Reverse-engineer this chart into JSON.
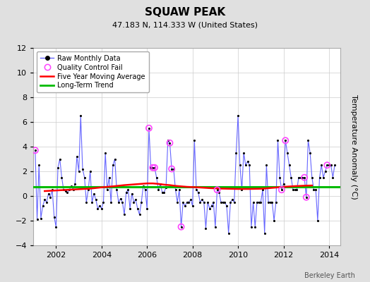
{
  "title": "SQUAW PEAK",
  "subtitle": "47.183 N, 114.333 W (United States)",
  "ylabel": "Temperature Anomaly (°C)",
  "attribution": "Berkeley Earth",
  "ylim": [
    -4,
    12
  ],
  "yticks": [
    -4,
    -2,
    0,
    2,
    4,
    6,
    8,
    10,
    12
  ],
  "xlim": [
    2001.0,
    2014.5
  ],
  "xticks": [
    2002,
    2004,
    2006,
    2008,
    2010,
    2012,
    2014
  ],
  "bg_color": "#e0e0e0",
  "plot_bg_color": "#ffffff",
  "raw_color": "#6666ff",
  "raw_marker_color": "#000000",
  "qc_fail_color": "#ff44ff",
  "moving_avg_color": "#ff0000",
  "trend_color": "#00bb00",
  "trend_value": 0.72,
  "raw_monthly": [
    [
      2001.083,
      3.7
    ],
    [
      2001.167,
      -1.9
    ],
    [
      2001.25,
      2.5
    ],
    [
      2001.333,
      -1.8
    ],
    [
      2001.417,
      -0.8
    ],
    [
      2001.5,
      -0.3
    ],
    [
      2001.583,
      -0.5
    ],
    [
      2001.667,
      0.2
    ],
    [
      2001.75,
      -0.1
    ],
    [
      2001.833,
      0.5
    ],
    [
      2001.917,
      -1.7
    ],
    [
      2002.0,
      -2.5
    ],
    [
      2002.083,
      2.3
    ],
    [
      2002.167,
      3.0
    ],
    [
      2002.25,
      1.5
    ],
    [
      2002.333,
      0.5
    ],
    [
      2002.417,
      0.4
    ],
    [
      2002.5,
      0.3
    ],
    [
      2002.583,
      0.5
    ],
    [
      2002.667,
      0.8
    ],
    [
      2002.75,
      0.5
    ],
    [
      2002.833,
      1.0
    ],
    [
      2002.917,
      3.2
    ],
    [
      2003.0,
      2.0
    ],
    [
      2003.083,
      6.5
    ],
    [
      2003.167,
      2.2
    ],
    [
      2003.25,
      1.5
    ],
    [
      2003.333,
      -0.5
    ],
    [
      2003.417,
      0.5
    ],
    [
      2003.5,
      2.0
    ],
    [
      2003.583,
      -0.5
    ],
    [
      2003.667,
      0.2
    ],
    [
      2003.75,
      -0.3
    ],
    [
      2003.833,
      -1.0
    ],
    [
      2003.917,
      -0.8
    ],
    [
      2004.0,
      -1.0
    ],
    [
      2004.083,
      -0.5
    ],
    [
      2004.167,
      3.5
    ],
    [
      2004.25,
      0.5
    ],
    [
      2004.333,
      1.5
    ],
    [
      2004.417,
      -0.5
    ],
    [
      2004.5,
      2.5
    ],
    [
      2004.583,
      3.0
    ],
    [
      2004.667,
      0.5
    ],
    [
      2004.75,
      -0.5
    ],
    [
      2004.833,
      -0.2
    ],
    [
      2004.917,
      -0.5
    ],
    [
      2005.0,
      -1.5
    ],
    [
      2005.083,
      0.3
    ],
    [
      2005.167,
      0.5
    ],
    [
      2005.25,
      -1.0
    ],
    [
      2005.333,
      0.2
    ],
    [
      2005.417,
      -0.5
    ],
    [
      2005.5,
      -0.3
    ],
    [
      2005.583,
      -1.0
    ],
    [
      2005.667,
      -1.5
    ],
    [
      2005.75,
      -0.5
    ],
    [
      2005.833,
      0.8
    ],
    [
      2005.917,
      0.5
    ],
    [
      2006.0,
      -1.0
    ],
    [
      2006.083,
      5.5
    ],
    [
      2006.167,
      2.3
    ],
    [
      2006.25,
      2.3
    ],
    [
      2006.333,
      2.3
    ],
    [
      2006.417,
      1.5
    ],
    [
      2006.5,
      0.5
    ],
    [
      2006.583,
      1.0
    ],
    [
      2006.667,
      0.3
    ],
    [
      2006.75,
      0.3
    ],
    [
      2006.833,
      0.7
    ],
    [
      2006.917,
      4.5
    ],
    [
      2007.0,
      4.3
    ],
    [
      2007.083,
      2.2
    ],
    [
      2007.167,
      2.2
    ],
    [
      2007.25,
      0.5
    ],
    [
      2007.333,
      -0.5
    ],
    [
      2007.417,
      0.5
    ],
    [
      2007.5,
      -2.5
    ],
    [
      2007.583,
      -0.5
    ],
    [
      2007.667,
      -0.8
    ],
    [
      2007.75,
      -0.5
    ],
    [
      2007.833,
      -0.5
    ],
    [
      2007.917,
      -0.3
    ],
    [
      2008.0,
      -0.8
    ],
    [
      2008.083,
      4.5
    ],
    [
      2008.167,
      0.5
    ],
    [
      2008.25,
      0.3
    ],
    [
      2008.333,
      -0.5
    ],
    [
      2008.417,
      -0.3
    ],
    [
      2008.5,
      -0.5
    ],
    [
      2008.583,
      -2.6
    ],
    [
      2008.667,
      -0.5
    ],
    [
      2008.75,
      -1.0
    ],
    [
      2008.833,
      -0.8
    ],
    [
      2008.917,
      -0.5
    ],
    [
      2009.0,
      -2.5
    ],
    [
      2009.083,
      0.5
    ],
    [
      2009.167,
      0.3
    ],
    [
      2009.25,
      -0.5
    ],
    [
      2009.333,
      -0.5
    ],
    [
      2009.417,
      -0.5
    ],
    [
      2009.5,
      -0.8
    ],
    [
      2009.583,
      -3.0
    ],
    [
      2009.667,
      -0.5
    ],
    [
      2009.75,
      -0.3
    ],
    [
      2009.833,
      -0.5
    ],
    [
      2009.917,
      3.5
    ],
    [
      2010.0,
      6.5
    ],
    [
      2010.083,
      2.5
    ],
    [
      2010.167,
      0.5
    ],
    [
      2010.25,
      3.5
    ],
    [
      2010.333,
      2.5
    ],
    [
      2010.417,
      2.8
    ],
    [
      2010.5,
      2.5
    ],
    [
      2010.583,
      -2.5
    ],
    [
      2010.667,
      -0.5
    ],
    [
      2010.75,
      -2.5
    ],
    [
      2010.833,
      -0.5
    ],
    [
      2010.917,
      -0.5
    ],
    [
      2011.0,
      -0.5
    ],
    [
      2011.083,
      0.5
    ],
    [
      2011.167,
      -3.0
    ],
    [
      2011.25,
      2.5
    ],
    [
      2011.333,
      -0.5
    ],
    [
      2011.417,
      -0.5
    ],
    [
      2011.5,
      -0.5
    ],
    [
      2011.583,
      -2.0
    ],
    [
      2011.667,
      -0.5
    ],
    [
      2011.75,
      4.5
    ],
    [
      2011.833,
      1.5
    ],
    [
      2011.917,
      0.5
    ],
    [
      2012.0,
      1.0
    ],
    [
      2012.083,
      4.5
    ],
    [
      2012.167,
      3.5
    ],
    [
      2012.25,
      2.5
    ],
    [
      2012.333,
      1.5
    ],
    [
      2012.417,
      0.5
    ],
    [
      2012.5,
      0.5
    ],
    [
      2012.583,
      0.5
    ],
    [
      2012.667,
      1.5
    ],
    [
      2012.75,
      1.5
    ],
    [
      2012.833,
      1.5
    ],
    [
      2012.917,
      1.5
    ],
    [
      2013.0,
      -0.1
    ],
    [
      2013.083,
      4.5
    ],
    [
      2013.167,
      3.5
    ],
    [
      2013.25,
      1.5
    ],
    [
      2013.333,
      0.5
    ],
    [
      2013.417,
      0.5
    ],
    [
      2013.5,
      -2.0
    ],
    [
      2013.583,
      1.5
    ],
    [
      2013.667,
      2.5
    ],
    [
      2013.75,
      1.5
    ],
    [
      2013.833,
      2.0
    ],
    [
      2013.917,
      2.5
    ],
    [
      2014.0,
      2.5
    ],
    [
      2014.083,
      2.5
    ],
    [
      2014.167,
      1.5
    ],
    [
      2014.25,
      2.5
    ]
  ],
  "qc_fail_points": [
    [
      2001.083,
      3.7
    ],
    [
      2006.083,
      5.5
    ],
    [
      2006.25,
      2.3
    ],
    [
      2006.333,
      2.3
    ],
    [
      2007.0,
      4.3
    ],
    [
      2007.083,
      2.2
    ],
    [
      2007.5,
      -2.5
    ],
    [
      2009.083,
      0.5
    ],
    [
      2011.917,
      0.5
    ],
    [
      2012.083,
      4.5
    ],
    [
      2012.917,
      1.5
    ],
    [
      2013.0,
      -0.1
    ],
    [
      2013.917,
      2.5
    ]
  ],
  "moving_avg": [
    [
      2001.5,
      0.4
    ],
    [
      2002.0,
      0.45
    ],
    [
      2002.5,
      0.5
    ],
    [
      2003.0,
      0.55
    ],
    [
      2003.5,
      0.6
    ],
    [
      2004.0,
      0.7
    ],
    [
      2004.5,
      0.78
    ],
    [
      2005.0,
      0.88
    ],
    [
      2005.5,
      0.95
    ],
    [
      2006.0,
      1.02
    ],
    [
      2006.25,
      1.02
    ],
    [
      2006.5,
      0.98
    ],
    [
      2006.75,
      0.92
    ],
    [
      2007.0,
      0.88
    ],
    [
      2007.25,
      0.82
    ],
    [
      2007.5,
      0.78
    ],
    [
      2007.75,
      0.74
    ],
    [
      2008.0,
      0.72
    ],
    [
      2008.25,
      0.7
    ],
    [
      2008.5,
      0.67
    ],
    [
      2008.75,
      0.64
    ],
    [
      2009.0,
      0.62
    ],
    [
      2009.25,
      0.6
    ],
    [
      2009.5,
      0.59
    ],
    [
      2009.75,
      0.58
    ],
    [
      2010.0,
      0.57
    ],
    [
      2010.25,
      0.57
    ],
    [
      2010.5,
      0.57
    ],
    [
      2010.75,
      0.58
    ],
    [
      2011.0,
      0.59
    ],
    [
      2011.25,
      0.62
    ],
    [
      2011.5,
      0.66
    ],
    [
      2011.75,
      0.7
    ],
    [
      2012.0,
      0.74
    ],
    [
      2012.25,
      0.77
    ],
    [
      2012.5,
      0.8
    ],
    [
      2012.75,
      0.82
    ],
    [
      2013.0,
      0.84
    ],
    [
      2013.25,
      0.85
    ]
  ],
  "title_fontsize": 11,
  "subtitle_fontsize": 8,
  "tick_fontsize": 8,
  "ylabel_fontsize": 8,
  "legend_fontsize": 7,
  "attribution_fontsize": 7
}
